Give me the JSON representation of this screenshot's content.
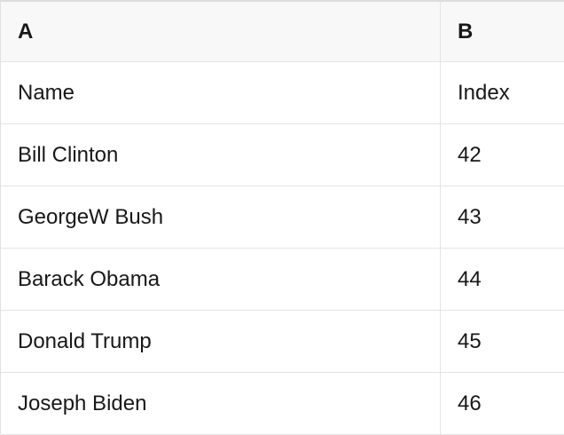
{
  "colors": {
    "header_bg": "#f8f8f8",
    "border": "#e4e4e4",
    "top_border": "#dcdcdc",
    "text": "#181818"
  },
  "table": {
    "column_headers": [
      "A",
      "B"
    ],
    "rows": [
      {
        "a": "Name",
        "b": "Index"
      },
      {
        "a": "Bill Clinton",
        "b": "42"
      },
      {
        "a": "GeorgeW Bush",
        "b": "43"
      },
      {
        "a": "Barack Obama",
        "b": "44"
      },
      {
        "a": "Donald Trump",
        "b": "45"
      },
      {
        "a": "Joseph Biden",
        "b": "46"
      }
    ]
  }
}
